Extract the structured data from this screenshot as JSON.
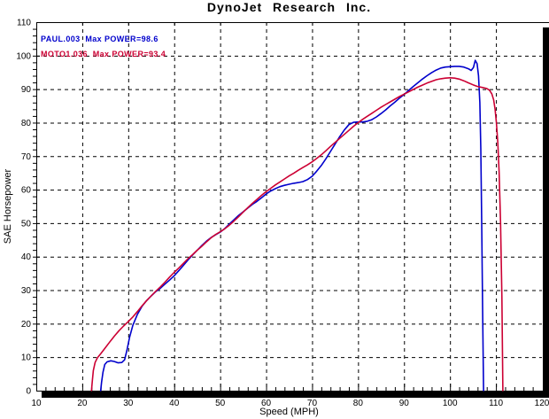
{
  "chart_data": {
    "type": "line",
    "title": "DynoJet Research Inc.",
    "xlabel": "Speed (MPH)",
    "ylabel": "SAE Horsepower",
    "x_axis": {
      "min": 10,
      "max": 120,
      "major": 10,
      "minor": 2
    },
    "y_axis": {
      "min": 0,
      "max": 110,
      "major": 10,
      "minor": 2
    },
    "grid": "dashed",
    "legend_position": "top-left-inside",
    "series": [
      {
        "name": "PAUL.003",
        "label": "PAUL.003  Max POWER=98.6",
        "max_power": 98.6,
        "color": "#0000CC",
        "points": [
          [
            24.0,
            0
          ],
          [
            24.2,
            2.5
          ],
          [
            24.5,
            5.5
          ],
          [
            24.9,
            7.8
          ],
          [
            25.4,
            8.6
          ],
          [
            26.2,
            8.9
          ],
          [
            27.0,
            8.7
          ],
          [
            27.8,
            8.3
          ],
          [
            28.6,
            8.4
          ],
          [
            29.2,
            9.2
          ],
          [
            29.7,
            12.0
          ],
          [
            30.3,
            16.0
          ],
          [
            31.0,
            19.5
          ],
          [
            32.0,
            22.8
          ],
          [
            33.0,
            25.2
          ],
          [
            34.0,
            26.9
          ],
          [
            35.0,
            28.3
          ],
          [
            36.0,
            29.6
          ],
          [
            37.0,
            30.6
          ],
          [
            38.0,
            31.8
          ],
          [
            39.0,
            33.0
          ],
          [
            40.0,
            34.3
          ],
          [
            41.0,
            35.8
          ],
          [
            42.0,
            37.4
          ],
          [
            43.0,
            39.0
          ],
          [
            44.0,
            40.5
          ],
          [
            45.0,
            41.9
          ],
          [
            46.0,
            43.3
          ],
          [
            47.0,
            44.6
          ],
          [
            48.0,
            45.7
          ],
          [
            49.0,
            46.5
          ],
          [
            50.0,
            47.3
          ],
          [
            51.0,
            48.4
          ],
          [
            52.0,
            49.7
          ],
          [
            53.0,
            51.0
          ],
          [
            54.0,
            52.3
          ],
          [
            55.0,
            53.4
          ],
          [
            56.0,
            54.5
          ],
          [
            57.0,
            55.6
          ],
          [
            58.0,
            56.5
          ],
          [
            59.0,
            57.6
          ],
          [
            60.0,
            58.7
          ],
          [
            61.0,
            59.6
          ],
          [
            62.0,
            60.3
          ],
          [
            63.0,
            60.9
          ],
          [
            64.0,
            61.3
          ],
          [
            65.0,
            61.6
          ],
          [
            66.0,
            61.9
          ],
          [
            67.0,
            62.1
          ],
          [
            68.0,
            62.4
          ],
          [
            69.0,
            63.0
          ],
          [
            70.0,
            64.0
          ],
          [
            71.0,
            65.5
          ],
          [
            72.0,
            67.2
          ],
          [
            73.0,
            69.2
          ],
          [
            74.0,
            71.4
          ],
          [
            75.0,
            73.6
          ],
          [
            76.0,
            75.8
          ],
          [
            77.0,
            77.8
          ],
          [
            78.0,
            79.4
          ],
          [
            79.0,
            80.1
          ],
          [
            80.0,
            80.2
          ],
          [
            81.0,
            80.2
          ],
          [
            82.0,
            80.4
          ],
          [
            83.0,
            80.9
          ],
          [
            84.0,
            81.7
          ],
          [
            85.0,
            82.7
          ],
          [
            86.0,
            83.8
          ],
          [
            87.0,
            85.0
          ],
          [
            88.0,
            86.1
          ],
          [
            89.0,
            87.3
          ],
          [
            90.0,
            88.4
          ],
          [
            91.0,
            89.6
          ],
          [
            92.0,
            90.8
          ],
          [
            93.0,
            91.9
          ],
          [
            94.0,
            93.0
          ],
          [
            95.0,
            94.0
          ],
          [
            96.0,
            94.9
          ],
          [
            97.0,
            95.7
          ],
          [
            98.0,
            96.3
          ],
          [
            99.0,
            96.6
          ],
          [
            100.0,
            96.7
          ],
          [
            101.0,
            96.8
          ],
          [
            102.0,
            96.8
          ],
          [
            103.0,
            96.6
          ],
          [
            104.0,
            96.1
          ],
          [
            104.6,
            95.6
          ],
          [
            105.1,
            96.5
          ],
          [
            105.5,
            98.6
          ],
          [
            105.9,
            97.6
          ],
          [
            106.2,
            94.0
          ],
          [
            106.5,
            86.0
          ],
          [
            106.7,
            72.0
          ],
          [
            106.9,
            50.0
          ],
          [
            107.1,
            25.0
          ],
          [
            107.3,
            0
          ]
        ]
      },
      {
        "name": "MOTO1.036",
        "label": "MOTO1.036  Max POWER=93.4",
        "max_power": 93.4,
        "color": "#CC0033",
        "points": [
          [
            22.0,
            0
          ],
          [
            22.2,
            3.0
          ],
          [
            22.4,
            6.0
          ],
          [
            22.8,
            8.4
          ],
          [
            23.3,
            9.8
          ],
          [
            24.0,
            11.0
          ],
          [
            25.0,
            12.8
          ],
          [
            26.0,
            14.6
          ],
          [
            27.0,
            16.3
          ],
          [
            28.0,
            17.9
          ],
          [
            29.0,
            19.3
          ],
          [
            30.0,
            20.6
          ],
          [
            31.0,
            22.0
          ],
          [
            32.0,
            23.6
          ],
          [
            33.0,
            25.3
          ],
          [
            34.0,
            26.9
          ],
          [
            35.0,
            28.3
          ],
          [
            36.0,
            29.7
          ],
          [
            37.0,
            31.0
          ],
          [
            38.0,
            32.4
          ],
          [
            39.0,
            33.9
          ],
          [
            40.0,
            35.3
          ],
          [
            41.0,
            36.6
          ],
          [
            42.0,
            38.0
          ],
          [
            43.0,
            39.4
          ],
          [
            44.0,
            40.6
          ],
          [
            45.0,
            41.9
          ],
          [
            46.0,
            43.1
          ],
          [
            47.0,
            44.4
          ],
          [
            48.0,
            45.6
          ],
          [
            49.0,
            46.6
          ],
          [
            50.0,
            47.4
          ],
          [
            51.0,
            48.3
          ],
          [
            52.0,
            49.4
          ],
          [
            53.0,
            50.6
          ],
          [
            54.0,
            51.9
          ],
          [
            55.0,
            53.3
          ],
          [
            56.0,
            54.6
          ],
          [
            57.0,
            55.9
          ],
          [
            58.0,
            57.1
          ],
          [
            59.0,
            58.3
          ],
          [
            60.0,
            59.4
          ],
          [
            61.0,
            60.4
          ],
          [
            62.0,
            61.4
          ],
          [
            63.0,
            62.3
          ],
          [
            64.0,
            63.2
          ],
          [
            65.0,
            64.1
          ],
          [
            66.0,
            64.9
          ],
          [
            67.0,
            65.8
          ],
          [
            68.0,
            66.6
          ],
          [
            69.0,
            67.4
          ],
          [
            70.0,
            68.3
          ],
          [
            71.0,
            69.3
          ],
          [
            72.0,
            70.4
          ],
          [
            73.0,
            71.6
          ],
          [
            74.0,
            72.9
          ],
          [
            75.0,
            74.1
          ],
          [
            76.0,
            75.3
          ],
          [
            77.0,
            76.5
          ],
          [
            78.0,
            77.7
          ],
          [
            79.0,
            78.9
          ],
          [
            80.0,
            80.0
          ],
          [
            81.0,
            81.0
          ],
          [
            82.0,
            81.9
          ],
          [
            83.0,
            82.8
          ],
          [
            84.0,
            83.7
          ],
          [
            85.0,
            84.6
          ],
          [
            86.0,
            85.4
          ],
          [
            87.0,
            86.2
          ],
          [
            88.0,
            87.0
          ],
          [
            89.0,
            87.8
          ],
          [
            90.0,
            88.5
          ],
          [
            91.0,
            89.2
          ],
          [
            92.0,
            89.9
          ],
          [
            93.0,
            90.6
          ],
          [
            94.0,
            91.2
          ],
          [
            95.0,
            91.8
          ],
          [
            96.0,
            92.3
          ],
          [
            97.0,
            92.8
          ],
          [
            98.0,
            93.1
          ],
          [
            99.0,
            93.3
          ],
          [
            100.0,
            93.4
          ],
          [
            101.0,
            93.3
          ],
          [
            102.0,
            93.0
          ],
          [
            103.0,
            92.5
          ],
          [
            104.0,
            91.9
          ],
          [
            105.0,
            91.3
          ],
          [
            106.0,
            90.8
          ],
          [
            107.0,
            90.5
          ],
          [
            108.0,
            90.2
          ],
          [
            108.6,
            89.7
          ],
          [
            109.1,
            88.6
          ],
          [
            109.5,
            86.8
          ],
          [
            109.8,
            84.0
          ],
          [
            110.1,
            80.0
          ],
          [
            110.4,
            74.0
          ],
          [
            110.7,
            65.0
          ],
          [
            111.0,
            50.0
          ],
          [
            111.3,
            28.0
          ],
          [
            111.5,
            0
          ]
        ]
      }
    ],
    "colors": {
      "axis": "#000000",
      "grid": "#000000",
      "background": "#ffffff"
    }
  }
}
